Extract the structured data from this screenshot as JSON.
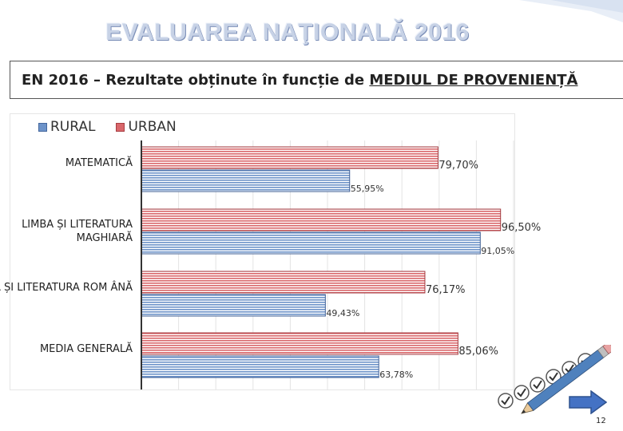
{
  "slide": {
    "title": "EVALUAREA NAŢIONALĂ 2016",
    "subtitle_prefix": "EN 2016 – Rezultate obținute în funcție de ",
    "subtitle_emphasis": "MEDIUL DE PROVENIENȚĂ",
    "page_number": "12"
  },
  "colors": {
    "rural": "#6d93c9",
    "rural_line": "#3f5f95",
    "urban": "#d9676b",
    "urban_line": "#a33a3f"
  },
  "chart_data": {
    "type": "bar",
    "orientation": "horizontal",
    "categories": [
      "MATEMATICĂ",
      "LIMBA ȘI LITERATURA MAGHIARĂ",
      "LIMBA ȘI LITERATURA ROM ÂNĂ",
      "MEDIA GENERALĂ"
    ],
    "category_display": [
      [
        "MATEMATICĂ"
      ],
      [
        "LIMBA ȘI LITERATURA",
        "MAGHIARĂ"
      ],
      [
        "LIMBA ȘI LITERATURA ROM ÂNĂ"
      ],
      [
        "MEDIA GENERALĂ"
      ]
    ],
    "series": [
      {
        "name": "RURAL",
        "values": [
          55.95,
          91.05,
          49.43,
          63.78
        ],
        "labels": [
          "55,95%",
          "91,05%",
          "49,43%",
          "63,78%"
        ]
      },
      {
        "name": "URBAN",
        "values": [
          79.7,
          96.5,
          76.17,
          85.06
        ],
        "labels": [
          "79,70%",
          "96,50%",
          "76,17%",
          "85,06%"
        ]
      }
    ],
    "xlim": [
      0,
      100
    ],
    "grid": true,
    "legend": "top-left"
  }
}
